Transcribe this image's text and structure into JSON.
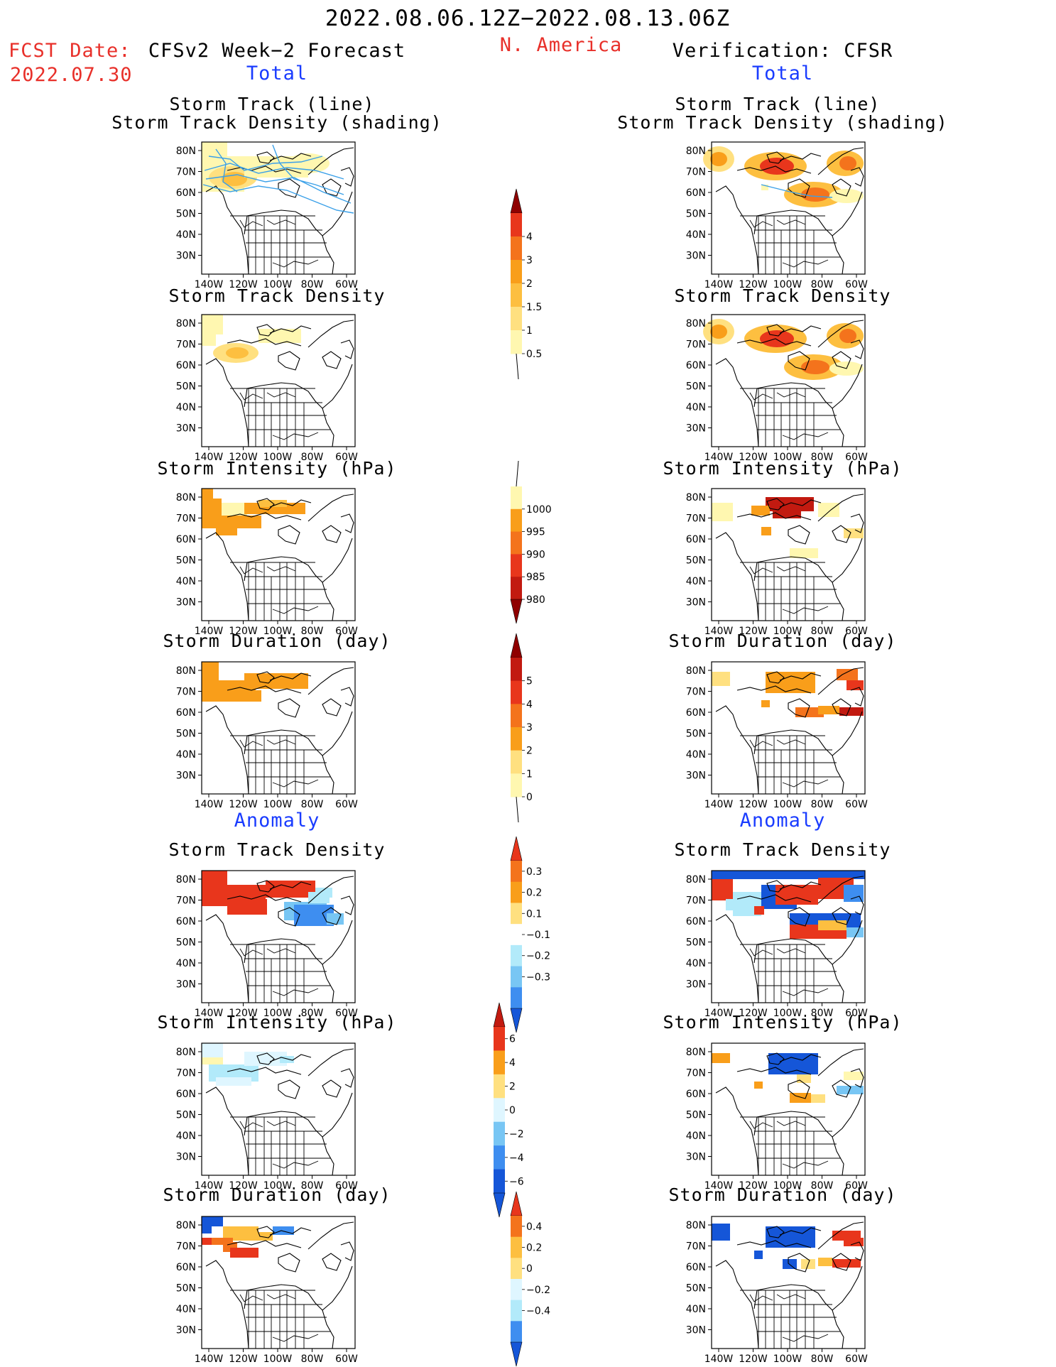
{
  "header": {
    "period": "2022.08.06.12Z−2022.08.13.06Z",
    "region": "N. America",
    "fcst_label": "FCST Date:",
    "fcst_date": "2022.07.30",
    "left_model": "CFSv2 Week−2 Forecast",
    "right_model": "Verification: CFSR",
    "total_label": "Total",
    "anomaly_label": "Anomaly"
  },
  "panel_titles": {
    "track": [
      "Storm Track (line)",
      "Storm Track Density (shading)"
    ],
    "density": "Storm Track Density",
    "intensity": "Storm Intensity (hPa)",
    "duration": "Storm Duration (day)"
  },
  "map_axes": {
    "lat_ticks": [
      "80N",
      "70N",
      "60N",
      "50N",
      "40N",
      "30N"
    ],
    "lon_ticks": [
      "140W",
      "120W",
      "100W",
      "80W",
      "60W"
    ]
  },
  "colorbars": {
    "density_total": [
      "4",
      "3",
      "2",
      "1.5",
      "1",
      "0.5"
    ],
    "intensity_total": [
      "1000",
      "995",
      "990",
      "985",
      "980"
    ],
    "duration_total": [
      "5",
      "4",
      "3",
      "2",
      "1",
      "0"
    ],
    "density_anom": [
      "0.3",
      "0.2",
      "0.1",
      "−0.1",
      "−0.2",
      "−0.3"
    ],
    "intensity_anom": [
      "6",
      "4",
      "2",
      "0",
      "−2",
      "−4",
      "−6"
    ],
    "duration_anom": [
      "0.4",
      "0.2",
      "0",
      "−0.2",
      "−0.4"
    ]
  },
  "colors": {
    "title_red": "#e8302a",
    "label_blue": "#1a3cff",
    "track_line": "#3aa0e8",
    "warm_scale": [
      "#fff7b0",
      "#ffe080",
      "#fdbf40",
      "#f99e1a",
      "#f4731c",
      "#e8361c",
      "#c21a10",
      "#8f0000"
    ],
    "cool_scale": [
      "#dff6ff",
      "#b2eafa",
      "#78c6f4",
      "#3e8ef0",
      "#1556d8"
    ]
  }
}
